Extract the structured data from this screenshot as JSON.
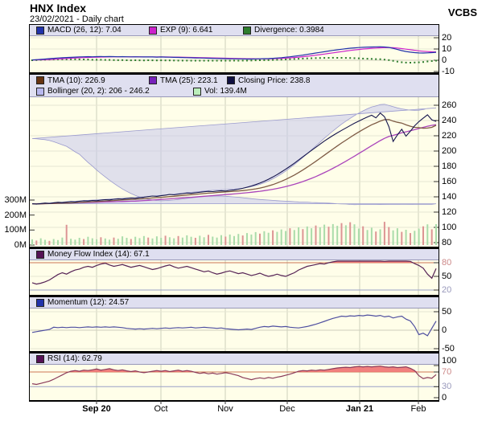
{
  "header": {
    "title": "HNX Index",
    "subtitle": "23/02/2021 - Daily chart",
    "brand": "VCBS"
  },
  "colors": {
    "panel_bg": "#fffee9",
    "legend_bg": "#dfdff0",
    "grid_v": "#ccd0bc",
    "grid_h": "#e6e6d4",
    "grid_zero": "#cfcfbc",
    "macd_line": "#2233aa",
    "exp_line": "#cc22cc",
    "divergence": "#2e7d2e",
    "closing": "#15154e",
    "tma10": "#7d5a44",
    "tma25": "#aa44bb",
    "boll_fill": "#c6c6ec",
    "boll_edge": "#9a9ace",
    "vol_up": "#aadcaa",
    "vol_down": "#dd9494",
    "mfi_line": "#552255",
    "momentum_line": "#4f4fa0",
    "rsi_line": "#8a3a5a",
    "rsi_fill": "#ef7272",
    "th_high": "#cc7755",
    "th_low": "#9aa0c8",
    "tick_high": "#cc8888",
    "tick_low": "#9898bb",
    "tick_default": "#000000"
  },
  "x_axis": {
    "labels": [
      {
        "text": "Sep 20",
        "bold": true
      },
      {
        "text": "Oct",
        "bold": false
      },
      {
        "text": "Nov",
        "bold": false
      },
      {
        "text": "Dec",
        "bold": false
      },
      {
        "text": "Jan 21",
        "bold": true
      },
      {
        "text": "Feb",
        "bold": false
      }
    ]
  },
  "chart_data": {
    "type": "line",
    "x_range": [
      "Sep 2020",
      "23 Feb 2021"
    ],
    "panels": [
      {
        "name": "MACD",
        "legend": [
          {
            "label": "MACD (26, 12): 7.04",
            "color": "#2233aa"
          },
          {
            "label": "EXP (9): 6.641",
            "color": "#cc22cc"
          },
          {
            "label": "Divergence: 0.3984",
            "color": "#2e7d2e"
          }
        ],
        "ylim": [
          -12,
          22
        ],
        "yticks": [
          {
            "v": 20,
            "t": "20"
          },
          {
            "v": 10,
            "t": "10"
          },
          {
            "v": 0,
            "t": "0"
          },
          {
            "v": -10,
            "t": "-10"
          }
        ],
        "exp_period": 9,
        "macd": [
          0.3,
          0.5,
          0.8,
          1.1,
          1.4,
          1.7,
          2,
          2.2,
          2.4,
          2.6,
          2.8,
          3,
          3.1,
          3.2,
          3.1,
          3.2,
          3.3,
          3.2,
          3.3,
          3.2,
          3.1,
          3.2,
          3.1,
          3,
          3.1,
          3,
          2.9,
          3,
          2.9,
          2.8,
          2.9,
          2.8,
          2.7,
          2.6,
          2.5,
          2.4,
          2.3,
          2.2,
          2.1,
          2,
          1.9,
          1.8,
          1.7,
          1.6,
          1.5,
          1.4,
          1.3,
          1.3,
          1.2,
          1.2,
          1.1,
          1.1,
          1.2,
          1.3,
          1.4,
          1.5,
          1.7,
          2,
          2.3,
          2.7,
          3.1,
          3.6,
          4.1,
          4.6,
          5.2,
          5.8,
          6.4,
          7,
          7.6,
          8.2,
          8.8,
          9.3,
          9.8,
          10.3,
          10.7,
          11,
          11.3,
          11.5,
          11.7,
          11.8,
          11.9,
          12,
          11.8,
          11.4,
          10.6,
          9.6,
          8.6,
          7.8,
          7.2,
          6.8,
          6.5,
          6.4,
          6.6,
          6.8,
          7.04
        ]
      },
      {
        "name": "Price and Volume",
        "legend": [
          {
            "label": "TMA (10): 226.9",
            "color": "#663311"
          },
          {
            "label": "TMA (25): 223.1",
            "color": "#7722bb"
          },
          {
            "label": "Closing Price: 238.8",
            "color": "#101040"
          }
        ],
        "legend2": [
          {
            "label": "Bollinger (20, 2): 206 - 246.2",
            "color": "#b8b8ee"
          },
          {
            "label": "Vol: 139.4M",
            "color": "#bbeebb"
          }
        ],
        "ylim": [
          75,
          270
        ],
        "yticks_right": [
          {
            "v": 260,
            "t": "260"
          },
          {
            "v": 240,
            "t": "240"
          },
          {
            "v": 220,
            "t": "220"
          },
          {
            "v": 200,
            "t": "200"
          },
          {
            "v": 180,
            "t": "180"
          },
          {
            "v": 160,
            "t": "160"
          },
          {
            "v": 140,
            "t": "140"
          },
          {
            "v": 120,
            "t": "120"
          },
          {
            "v": 100,
            "t": "100"
          },
          {
            "v": 80,
            "t": "80"
          }
        ],
        "yticks_left": [
          {
            "v": 300,
            "t": "300M"
          },
          {
            "v": 200,
            "t": "200M"
          },
          {
            "v": 100,
            "t": "100M"
          },
          {
            "v": 0,
            "t": "0M"
          }
        ],
        "tma_windows": [
          10,
          25
        ],
        "bollinger": {
          "window": 20,
          "mult": 2
        },
        "close": [
          131,
          130.4,
          131.2,
          131.8,
          131.3,
          132.2,
          132.8,
          132.4,
          133.2,
          133.8,
          133.4,
          134.2,
          134.8,
          134.5,
          135.3,
          135,
          135.8,
          136.3,
          136,
          136.8,
          137.4,
          137,
          137.8,
          138.4,
          138,
          139,
          139.6,
          140.3,
          141,
          140.6,
          141.5,
          142.2,
          143,
          142.6,
          143.5,
          144.2,
          145,
          144.6,
          145.4,
          146,
          146.6,
          147.2,
          146.8,
          147.5,
          148,
          147.6,
          148.4,
          149,
          150,
          151.2,
          152.6,
          154.2,
          156,
          158,
          160.4,
          163,
          166,
          169.2,
          172.6,
          176.2,
          180,
          184,
          188.2,
          192.4,
          196.6,
          200.8,
          205,
          209,
          213,
          216.8,
          220.4,
          223.8,
          227,
          230.2,
          233.4,
          236.4,
          239.2,
          242,
          244.6,
          247,
          243.5,
          249.8,
          245,
          232,
          212.5,
          221,
          228.5,
          219.5,
          226,
          233,
          238.5,
          243,
          247.5,
          241,
          238.8
        ],
        "volume_m": [
          38,
          30,
          45,
          35,
          28,
          40,
          33,
          50,
          135,
          42,
          36,
          48,
          40,
          55,
          45,
          38,
          52,
          44,
          36,
          50,
          42,
          58,
          48,
          40,
          55,
          46,
          60,
          50,
          44,
          58,
          48,
          62,
          52,
          45,
          60,
          50,
          65,
          55,
          48,
          62,
          52,
          68,
          56,
          50,
          66,
          56,
          70,
          60,
          74,
          64,
          80,
          70,
          86,
          76,
          92,
          82,
          98,
          88,
          104,
          94,
          112,
          100,
          118,
          106,
          124,
          112,
          130,
          118,
          136,
          122,
          140,
          128,
          146,
          132,
          152,
          138,
          110,
          125,
          100,
          115,
          90,
          105,
          155,
          120,
          98,
          112,
          88,
          102,
          80,
          95,
          110,
          125,
          138,
          105,
          139.4
        ],
        "vol_dir": "grggrgggrgggrgggrggrgggrgggrgggrggrgggrggrgggrgggrgggrggrgggrggrggrggrggrgrggrggrgrrggrgrggrgrg"
      },
      {
        "name": "Money Flow Index",
        "legend": [
          {
            "label": "Money Flow Index (14): 67.1",
            "color": "#551155"
          }
        ],
        "ylim": [
          10,
          95
        ],
        "yticks": [
          {
            "v": 80,
            "t": "80",
            "c": "high"
          },
          {
            "v": 50,
            "t": "50",
            "c": "default"
          },
          {
            "v": 20,
            "t": "20",
            "c": "low"
          }
        ],
        "thresholds": {
          "high": 80,
          "low": 20
        },
        "values": [
          36,
          33,
          35,
          38,
          42,
          48,
          54,
          58,
          55,
          60,
          64,
          66,
          70,
          72,
          70,
          74,
          77,
          79,
          75,
          72,
          74,
          76,
          73,
          70,
          72,
          74,
          71,
          68,
          65,
          67,
          70,
          73,
          75,
          71,
          68,
          70,
          72,
          69,
          66,
          63,
          60,
          62,
          58,
          55,
          57,
          60,
          62,
          59,
          56,
          58,
          55,
          52,
          54,
          57,
          53,
          50,
          52,
          55,
          52,
          50,
          54,
          58,
          64,
          68,
          72,
          74,
          76,
          78,
          77,
          80,
          82,
          84,
          84,
          85,
          84,
          86,
          88,
          90,
          86,
          84,
          85,
          84,
          83,
          84,
          85,
          84,
          84,
          85,
          83,
          78,
          74,
          68,
          55,
          46,
          67.1
        ]
      },
      {
        "name": "Momentum",
        "legend": [
          {
            "label": "Momentum (12): 24.57",
            "color": "#2233aa"
          }
        ],
        "ylim": [
          -55,
          55
        ],
        "yticks": [
          {
            "v": 50,
            "t": "50"
          },
          {
            "v": 0,
            "t": "0"
          },
          {
            "v": -50,
            "t": "-50"
          }
        ],
        "values": [
          -6,
          -4,
          -2,
          0,
          2,
          8,
          7,
          8,
          7,
          8,
          8,
          7,
          8,
          9,
          8,
          9,
          8,
          9,
          8,
          9,
          8,
          7,
          5,
          4,
          3,
          4,
          3,
          4,
          5,
          4,
          5,
          6,
          5,
          6,
          7,
          6,
          7,
          8,
          6,
          7,
          8,
          7,
          6,
          5,
          6,
          4,
          3,
          2,
          1,
          2,
          3,
          2,
          5,
          8,
          10,
          9,
          11,
          10,
          9,
          10,
          8,
          7,
          6,
          8,
          10,
          13,
          16,
          20,
          24,
          28,
          32,
          35,
          38,
          37,
          39,
          38,
          40,
          39,
          41,
          40,
          38,
          40,
          36,
          38,
          33,
          36,
          38,
          30,
          25,
          10,
          -12,
          -8,
          -15,
          5,
          24.57
        ]
      },
      {
        "name": "RSI",
        "legend": [
          {
            "label": "RSI (14): 62.79",
            "color": "#551155"
          }
        ],
        "ylim": [
          0,
          100
        ],
        "yticks": [
          {
            "v": 100,
            "t": "100"
          },
          {
            "v": 70,
            "t": "70",
            "c": "high"
          },
          {
            "v": 30,
            "t": "30",
            "c": "low"
          },
          {
            "v": 0,
            "t": "0"
          }
        ],
        "thresholds": {
          "high": 70,
          "low": 30
        },
        "values": [
          38,
          36,
          39,
          42,
          45,
          50,
          56,
          62,
          68,
          72,
          74,
          72,
          75,
          74,
          76,
          78,
          75,
          77,
          79,
          76,
          74,
          76,
          73,
          71,
          73,
          70,
          68,
          70,
          72,
          74,
          72,
          74,
          71,
          73,
          75,
          72,
          74,
          72,
          69,
          66,
          68,
          65,
          67,
          64,
          66,
          68,
          66,
          63,
          60,
          55,
          52,
          49,
          52,
          54,
          52,
          55,
          53,
          56,
          58,
          61,
          64,
          68,
          72,
          74,
          73,
          75,
          74,
          76,
          75,
          77,
          79,
          81,
          82,
          83,
          82,
          84,
          85,
          84,
          85,
          84,
          85,
          86,
          84,
          83,
          84,
          82,
          83,
          84,
          80,
          74,
          60,
          52,
          55,
          53,
          62.79
        ]
      }
    ]
  }
}
